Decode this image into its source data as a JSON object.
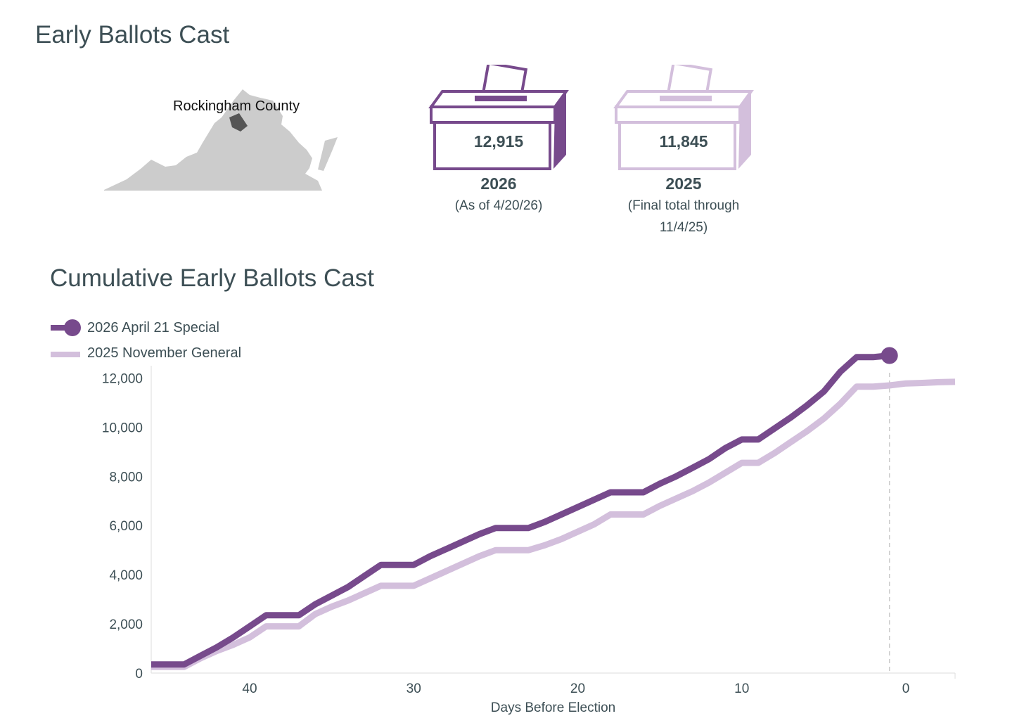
{
  "header": {
    "title": "Early Ballots Cast"
  },
  "map": {
    "county_label": "Rockingham County",
    "state_color": "#cccccc",
    "county_color": "#555555"
  },
  "ballot_boxes": [
    {
      "count": "12,915",
      "year": "2026",
      "note": "(As of 4/20/26)",
      "color": "#774a8c"
    },
    {
      "count": "11,845",
      "year": "2025",
      "note": "(Final total through 11/4/25)",
      "color": "#d3bfdc"
    }
  ],
  "chart_section": {
    "title": "Cumulative Early Ballots Cast"
  },
  "legend": {
    "items": [
      {
        "label": "2026 April 21 Special",
        "color": "#774a8c"
      },
      {
        "label": "2025 November General",
        "color": "#d3bfdc"
      }
    ]
  },
  "chart_data": {
    "type": "line",
    "title": "Cumulative Early Ballots Cast",
    "xlabel": "Days Before Election",
    "ylabel": "",
    "xlim": [
      46,
      -3
    ],
    "ylim": [
      0,
      12500
    ],
    "xticks": [
      40,
      30,
      20,
      10,
      0
    ],
    "xtick_labels": [
      "40",
      "30",
      "20",
      "10",
      "0"
    ],
    "yticks": [
      0,
      2000,
      4000,
      6000,
      8000,
      10000,
      12000
    ],
    "ytick_labels": [
      "0",
      "2,000",
      "4,000",
      "6,000",
      "8,000",
      "10,000",
      "12,000"
    ],
    "reference_line_x": 1,
    "series": [
      {
        "name": "2026 April 21 Special",
        "color": "#774a8c",
        "end_marker": true,
        "x": [
          46,
          44,
          43,
          42,
          41,
          40,
          39,
          38,
          37,
          36,
          35,
          34,
          33,
          32,
          31,
          30,
          29,
          28,
          27,
          26,
          25,
          24,
          23,
          22,
          21,
          20,
          19,
          18,
          17,
          16,
          15,
          14,
          13,
          12,
          11,
          10,
          9,
          8,
          7,
          6,
          5,
          4,
          3,
          2,
          1
        ],
        "y": [
          350,
          350,
          700,
          1050,
          1450,
          1900,
          2350,
          2350,
          2350,
          2800,
          3150,
          3500,
          3950,
          4400,
          4400,
          4400,
          4750,
          5050,
          5350,
          5650,
          5900,
          5900,
          5900,
          6150,
          6450,
          6750,
          7050,
          7350,
          7350,
          7350,
          7700,
          8000,
          8350,
          8700,
          9150,
          9500,
          9500,
          9950,
          10400,
          10900,
          11450,
          12250,
          12850,
          12850,
          12915
        ]
      },
      {
        "name": "2025 November General",
        "color": "#d3bfdc",
        "end_marker": false,
        "x": [
          46,
          44,
          43,
          42,
          41,
          40,
          39,
          38,
          37,
          36,
          35,
          34,
          33,
          32,
          31,
          30,
          29,
          28,
          27,
          26,
          25,
          24,
          23,
          22,
          21,
          20,
          19,
          18,
          17,
          16,
          15,
          14,
          13,
          12,
          11,
          10,
          9,
          8,
          7,
          6,
          5,
          4,
          3,
          2,
          1,
          0,
          -1,
          -2,
          -3
        ],
        "y": [
          250,
          250,
          600,
          900,
          1150,
          1450,
          1900,
          1900,
          1900,
          2400,
          2700,
          2950,
          3250,
          3550,
          3550,
          3550,
          3850,
          4150,
          4450,
          4750,
          5000,
          5000,
          5000,
          5200,
          5450,
          5750,
          6050,
          6450,
          6450,
          6450,
          6800,
          7100,
          7400,
          7750,
          8150,
          8550,
          8550,
          8950,
          9400,
          9850,
          10350,
          10950,
          11650,
          11650,
          11700,
          11780,
          11800,
          11830,
          11845
        ]
      }
    ]
  }
}
